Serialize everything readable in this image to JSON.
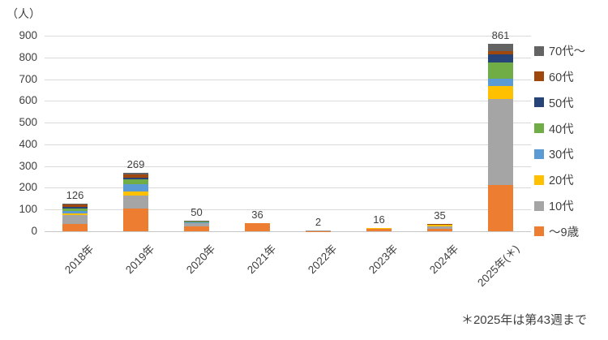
{
  "unit_label": "（人）",
  "footnote": "＊2025年は第43週まで",
  "chart_data": {
    "type": "bar",
    "stacked": true,
    "title": "",
    "ylabel": "（人）",
    "xlabel": "",
    "ylim": [
      0,
      900
    ],
    "ytick_step": 100,
    "grid": "horizontal",
    "legend_position": "right",
    "categories": [
      "2018年",
      "2019年",
      "2020年",
      "2021年",
      "2022年",
      "2023年",
      "2024年",
      "2025年(＊)"
    ],
    "totals": [
      126,
      269,
      50,
      36,
      2,
      16,
      35,
      861
    ],
    "series": [
      {
        "name": "～9歳",
        "color": "#ED7D31",
        "values": [
          34,
          103,
          23,
          36,
          1,
          10,
          10,
          212
        ]
      },
      {
        "name": "10代",
        "color": "#A5A5A5",
        "values": [
          40,
          60,
          13,
          0,
          1,
          0,
          14,
          395
        ]
      },
      {
        "name": "20代",
        "color": "#FFC000",
        "values": [
          9,
          21,
          5,
          0,
          0,
          6,
          5,
          60
        ]
      },
      {
        "name": "30代",
        "color": "#5B9BD5",
        "values": [
          12,
          32,
          1,
          0,
          0,
          0,
          0,
          35
        ]
      },
      {
        "name": "40代",
        "color": "#70AD47",
        "values": [
          11,
          22,
          4,
          0,
          0,
          0,
          0,
          73
        ]
      },
      {
        "name": "50代",
        "color": "#264478",
        "values": [
          7,
          8,
          0,
          0,
          0,
          0,
          0,
          40
        ]
      },
      {
        "name": "60代",
        "color": "#9E480E",
        "values": [
          11,
          15,
          3,
          0,
          0,
          0,
          6,
          13
        ]
      },
      {
        "name": "70代～",
        "color": "#636363",
        "values": [
          2,
          8,
          1,
          0,
          0,
          0,
          0,
          33
        ]
      }
    ],
    "legend_order_top_to_bottom": [
      "70代～",
      "60代",
      "50代",
      "40代",
      "30代",
      "20代",
      "10代",
      "～9歳"
    ]
  }
}
